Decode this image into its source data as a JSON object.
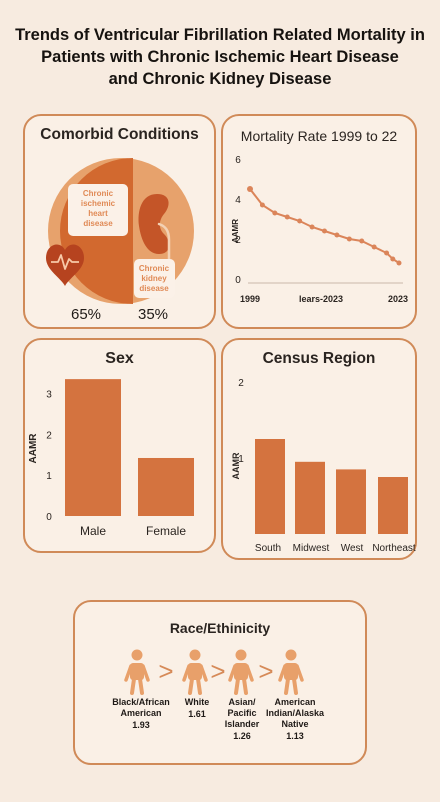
{
  "title": {
    "line1": "Trends of Ventricular Fibrillation Related Mortality in",
    "line2": "Patients with Chronic Ischemic Heart Disease",
    "line3": "and Chronic Kidney Disease"
  },
  "colors": {
    "accent": "#d4733f",
    "accent_dark": "#c45d2b",
    "accent_light": "#e8a06a",
    "panel_border": "#d08a58",
    "background": "#f7ebe0",
    "line_color": "#db855a"
  },
  "comorbid": {
    "title": "Comorbid Conditions",
    "heart_label": "Chronic ischemic heart disease",
    "heart_lines": [
      "Chronic",
      "ischemic",
      "heart",
      "disease"
    ],
    "kidney_label": "Chronic kidney disease",
    "kidney_lines": [
      "Chronic",
      "kidney",
      "disease"
    ],
    "heart_pct": "65%",
    "kidney_pct": "35%",
    "icons": [
      "heart-icon",
      "kidney-icon"
    ]
  },
  "mortality": {
    "title": "Mortality Rate 1999 to 22",
    "x_start_label": "1999",
    "x_mid_label": "lears-2023",
    "x_end_label": "2023"
  },
  "sex": {
    "title": "Sex"
  },
  "region": {
    "title": "Census Region"
  },
  "race": {
    "title": "Race/Ethinicity",
    "groups": [
      {
        "lines": [
          "Black/African",
          "American",
          "1.93"
        ]
      },
      {
        "lines": [
          "White",
          "1.61"
        ]
      },
      {
        "lines": [
          "Asian/",
          "Pacific",
          "Islander",
          "1.26"
        ]
      },
      {
        "lines": [
          "American",
          "Indian/Alaska",
          "Native",
          "1.13"
        ]
      }
    ],
    "separator": ">",
    "icon": "person-icon"
  },
  "chart_data": [
    {
      "type": "line",
      "title": "Mortality Rate 1999 to 22",
      "ylabel": "AAMR",
      "xlabel": "lears-2023",
      "x_tick_labels": [
        "1999",
        "2023"
      ],
      "ylim": [
        0,
        6
      ],
      "y_ticks": [
        0,
        2,
        4,
        6
      ],
      "x": [
        1999,
        2001,
        2003,
        2005,
        2007,
        2009,
        2011,
        2013,
        2015,
        2017,
        2019,
        2021,
        2022,
        2023
      ],
      "values": [
        4.5,
        3.7,
        3.3,
        3.1,
        2.9,
        2.6,
        2.4,
        2.2,
        2.0,
        1.9,
        1.6,
        1.3,
        1.0,
        0.8
      ]
    },
    {
      "type": "bar",
      "title": "Sex",
      "ylabel": "AAMR",
      "categories": [
        "Male",
        "Female"
      ],
      "values": [
        3.35,
        1.42
      ],
      "ylim": [
        0,
        3.5
      ],
      "y_ticks": [
        0,
        1,
        2,
        3
      ]
    },
    {
      "type": "bar",
      "title": "Census Region",
      "ylabel": "AAMR",
      "categories": [
        "South",
        "Midwest",
        "West",
        "Northeast"
      ],
      "values": [
        1.25,
        0.95,
        0.85,
        0.75
      ],
      "ylim": [
        0,
        2
      ],
      "y_ticks": [
        1,
        2
      ]
    },
    {
      "type": "table",
      "title": "Race/Ethinicity",
      "categories": [
        "Black/African American",
        "White",
        "Asian/Pacific Islander",
        "American Indian/Alaska Native"
      ],
      "values": [
        1.93,
        1.61,
        1.26,
        1.13
      ]
    }
  ]
}
